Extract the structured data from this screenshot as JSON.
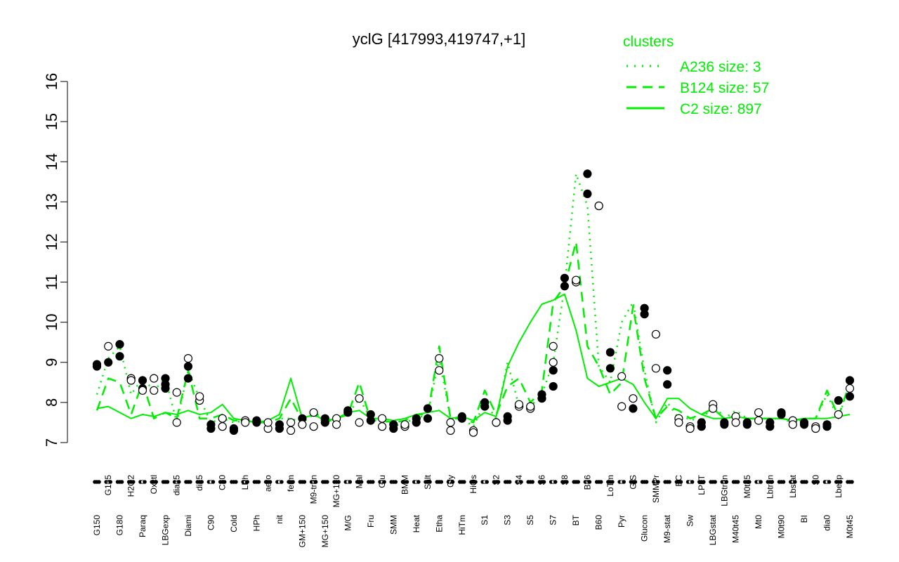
{
  "chart_data": {
    "type": "line",
    "title": "yclG [417993,419747,+1]",
    "xlabel": "",
    "ylabel": "",
    "ylim": [
      7,
      16
    ],
    "yticks": [
      7,
      8,
      9,
      10,
      11,
      12,
      13,
      14,
      15,
      16
    ],
    "grid": false,
    "legend": {
      "title": "clusters",
      "placement": "top-right",
      "color": "#00ee00",
      "entries": [
        {
          "label": "A236 size: 3",
          "style": "dotted"
        },
        {
          "label": "B124 size: 57",
          "style": "dashed"
        },
        {
          "label": "C2 size: 897",
          "style": "solid"
        }
      ]
    },
    "x_tick_labels": [
      "G150",
      "G135",
      "G180",
      "H2O2",
      "Paraq",
      "Oxctl",
      "LBGexp",
      "dia15",
      "Diami",
      "dia5",
      "C90",
      "C30",
      "Cold",
      "LPh",
      "HPh",
      "aero",
      "nit",
      "ferm",
      "GM+150",
      "M9-tran",
      "MG+150",
      "MG+120",
      "M/G",
      "Mal",
      "Fru",
      "Glu",
      "SMM",
      "BMM",
      "Heat",
      "Salt",
      "Etha",
      "Gly",
      "HiTm",
      "HiOs",
      "S1",
      "S2",
      "S3",
      "S4",
      "S5",
      "S6",
      "S7",
      "S8",
      "BT",
      "B36",
      "B60",
      "LoTm",
      "Pyr",
      "G/S",
      "Glucon",
      "SMMPr",
      "M9-stat",
      "BC",
      "Sw",
      "LPhT",
      "LBGstat",
      "LBGtran",
      "M40t45",
      "M0t45",
      "Mt0",
      "Lbtran",
      "M0t90",
      "Lbstat",
      "BI",
      "S0",
      "dia0",
      "Lbexp",
      "M0t45"
    ],
    "series": [
      {
        "name": "",
        "color": "#00ee00",
        "style": "solid",
        "y": [
          7.85,
          7.9,
          7.75,
          7.6,
          7.7,
          7.65,
          7.75,
          7.7,
          7.8,
          7.7,
          7.75,
          7.95,
          7.6,
          7.55,
          7.5,
          7.55,
          7.7,
          8.6,
          7.6,
          7.7,
          7.55,
          7.6,
          7.75,
          7.8,
          7.6,
          7.6,
          7.55,
          7.6,
          7.7,
          7.75,
          7.8,
          7.6,
          7.65,
          7.55,
          7.75,
          7.65,
          8.9,
          9.5,
          10.0,
          10.45,
          10.55,
          10.7,
          9.8,
          8.6,
          8.4,
          8.5,
          8.6,
          8.45,
          8.0,
          7.6,
          8.1,
          8.1,
          7.85,
          7.7,
          7.6,
          7.6,
          7.65,
          7.6,
          7.6,
          7.6,
          7.6,
          7.55,
          7.6,
          7.6,
          7.6,
          7.65,
          7.7
        ]
      },
      {
        "name": "",
        "color": "#00ee00",
        "style": "dashed",
        "y": [
          7.8,
          8.6,
          8.5,
          7.7,
          8.5,
          7.6,
          7.75,
          7.6,
          8.8,
          7.6,
          7.6,
          7.7,
          7.55,
          7.55,
          7.5,
          7.5,
          7.6,
          8.1,
          7.55,
          7.8,
          7.5,
          7.6,
          7.7,
          8.5,
          7.55,
          7.55,
          7.5,
          7.55,
          7.7,
          7.7,
          9.4,
          7.6,
          7.6,
          7.5,
          8.3,
          7.7,
          8.4,
          8.6,
          8.0,
          8.3,
          10.5,
          10.9,
          12.0,
          9.4,
          8.9,
          8.2,
          8.5,
          10.4,
          8.6,
          7.6,
          7.9,
          7.8,
          7.6,
          7.7,
          7.85,
          7.6,
          7.65,
          7.6,
          7.6,
          7.6,
          7.6,
          7.55,
          7.6,
          7.6,
          8.3,
          7.65,
          8.5
        ]
      },
      {
        "name": "",
        "color": "#00ee00",
        "style": "dotted",
        "y": [
          8.2,
          9.1,
          9.4,
          8.2,
          8.6,
          8.3,
          8.6,
          7.5,
          8.8,
          8.1,
          7.5,
          7.6,
          7.5,
          7.55,
          7.5,
          7.5,
          7.6,
          7.6,
          7.5,
          7.7,
          7.5,
          7.6,
          7.7,
          8.1,
          7.6,
          7.6,
          7.4,
          7.5,
          7.6,
          7.7,
          9.1,
          7.6,
          7.6,
          7.4,
          8.0,
          7.6,
          9.0,
          7.9,
          7.9,
          8.2,
          9.0,
          10.9,
          13.7,
          12.9,
          8.9,
          8.5,
          10.0,
          10.5,
          8.8,
          7.5,
          8.0,
          7.6,
          7.6,
          7.5,
          8.0,
          7.6,
          7.8,
          7.6,
          7.6,
          7.6,
          7.6,
          7.5,
          7.6,
          7.6,
          8.2,
          7.6,
          8.5
        ]
      }
    ],
    "points": [
      [
        0,
        8.9,
        1
      ],
      [
        0,
        8.95,
        1
      ],
      [
        1,
        9.0,
        1
      ],
      [
        1,
        9.4,
        0
      ],
      [
        2,
        9.45,
        1
      ],
      [
        2,
        9.15,
        1
      ],
      [
        3,
        8.6,
        0
      ],
      [
        3,
        8.55,
        0
      ],
      [
        4,
        8.55,
        1
      ],
      [
        4,
        8.35,
        1
      ],
      [
        4,
        8.3,
        0
      ],
      [
        5,
        8.6,
        0
      ],
      [
        5,
        8.3,
        0
      ],
      [
        6,
        8.6,
        1
      ],
      [
        6,
        8.35,
        1
      ],
      [
        6,
        8.45,
        1
      ],
      [
        7,
        7.5,
        0
      ],
      [
        7,
        8.25,
        0
      ],
      [
        8,
        9.1,
        0
      ],
      [
        8,
        8.9,
        1
      ],
      [
        8,
        8.6,
        1
      ],
      [
        9,
        8.05,
        0
      ],
      [
        9,
        8.15,
        0
      ],
      [
        10,
        7.45,
        1
      ],
      [
        10,
        7.35,
        1
      ],
      [
        11,
        7.6,
        0
      ],
      [
        11,
        7.4,
        0
      ],
      [
        12,
        7.3,
        1
      ],
      [
        12,
        7.35,
        1
      ],
      [
        13,
        7.55,
        0
      ],
      [
        13,
        7.5,
        0
      ],
      [
        14,
        7.55,
        1
      ],
      [
        14,
        7.5,
        1
      ],
      [
        15,
        7.35,
        0
      ],
      [
        15,
        7.5,
        0
      ],
      [
        16,
        7.35,
        1
      ],
      [
        16,
        7.45,
        1
      ],
      [
        17,
        7.5,
        0
      ],
      [
        17,
        7.3,
        0
      ],
      [
        18,
        7.6,
        1
      ],
      [
        18,
        7.45,
        0
      ],
      [
        19,
        7.75,
        0
      ],
      [
        19,
        7.4,
        0
      ],
      [
        20,
        7.6,
        1
      ],
      [
        20,
        7.5,
        1
      ],
      [
        21,
        7.6,
        0
      ],
      [
        21,
        7.45,
        0
      ],
      [
        22,
        7.8,
        1
      ],
      [
        22,
        7.75,
        1
      ],
      [
        23,
        8.1,
        0
      ],
      [
        23,
        7.5,
        0
      ],
      [
        24,
        7.7,
        1
      ],
      [
        24,
        7.55,
        1
      ],
      [
        25,
        7.6,
        0
      ],
      [
        25,
        7.4,
        0
      ],
      [
        26,
        7.35,
        1
      ],
      [
        26,
        7.45,
        1
      ],
      [
        27,
        7.4,
        0
      ],
      [
        27,
        7.45,
        0
      ],
      [
        28,
        7.6,
        1
      ],
      [
        28,
        7.5,
        1
      ],
      [
        29,
        7.85,
        1
      ],
      [
        29,
        7.6,
        1
      ],
      [
        30,
        8.8,
        0
      ],
      [
        30,
        9.1,
        0
      ],
      [
        31,
        7.5,
        0
      ],
      [
        31,
        7.3,
        0
      ],
      [
        32,
        7.6,
        1
      ],
      [
        32,
        7.65,
        1
      ],
      [
        33,
        7.3,
        0
      ],
      [
        33,
        7.25,
        0
      ],
      [
        34,
        7.9,
        1
      ],
      [
        34,
        8.0,
        1
      ],
      [
        35,
        7.5,
        0
      ],
      [
        35,
        7.5,
        0
      ],
      [
        36,
        7.55,
        1
      ],
      [
        36,
        7.65,
        1
      ],
      [
        37,
        7.9,
        0
      ],
      [
        37,
        7.95,
        0
      ],
      [
        38,
        7.85,
        0
      ],
      [
        38,
        7.9,
        0
      ],
      [
        39,
        8.1,
        1
      ],
      [
        39,
        8.2,
        1
      ],
      [
        40,
        8.4,
        1
      ],
      [
        40,
        8.8,
        1
      ],
      [
        40,
        9.4,
        0
      ],
      [
        40,
        9.0,
        0
      ],
      [
        41,
        10.9,
        1
      ],
      [
        41,
        11.1,
        1
      ],
      [
        42,
        11.0,
        0
      ],
      [
        42,
        11.05,
        0
      ],
      [
        43,
        13.2,
        1
      ],
      [
        43,
        13.7,
        1
      ],
      [
        44,
        12.9,
        0
      ],
      [
        44,
        12.9,
        0
      ],
      [
        45,
        9.25,
        1
      ],
      [
        45,
        8.85,
        1
      ],
      [
        46,
        8.65,
        0
      ],
      [
        46,
        7.9,
        0
      ],
      [
        47,
        8.1,
        0
      ],
      [
        47,
        7.85,
        1
      ],
      [
        48,
        10.35,
        1
      ],
      [
        48,
        10.2,
        1
      ],
      [
        49,
        9.7,
        0
      ],
      [
        49,
        8.85,
        0
      ],
      [
        50,
        8.8,
        1
      ],
      [
        50,
        8.45,
        1
      ],
      [
        51,
        7.6,
        0
      ],
      [
        51,
        7.5,
        0
      ],
      [
        52,
        7.4,
        0
      ],
      [
        52,
        7.35,
        0
      ],
      [
        53,
        7.5,
        1
      ],
      [
        53,
        7.4,
        1
      ],
      [
        54,
        7.95,
        0
      ],
      [
        54,
        7.85,
        0
      ],
      [
        55,
        7.45,
        1
      ],
      [
        55,
        7.5,
        1
      ],
      [
        56,
        7.65,
        0
      ],
      [
        56,
        7.5,
        0
      ],
      [
        57,
        7.45,
        1
      ],
      [
        57,
        7.5,
        1
      ],
      [
        58,
        7.75,
        0
      ],
      [
        58,
        7.55,
        0
      ],
      [
        59,
        7.4,
        1
      ],
      [
        59,
        7.5,
        1
      ],
      [
        60,
        7.75,
        1
      ],
      [
        60,
        7.7,
        1
      ],
      [
        61,
        7.55,
        0
      ],
      [
        61,
        7.45,
        0
      ],
      [
        62,
        7.5,
        1
      ],
      [
        62,
        7.45,
        1
      ],
      [
        63,
        7.4,
        0
      ],
      [
        63,
        7.35,
        0
      ],
      [
        64,
        7.4,
        1
      ],
      [
        64,
        7.45,
        1
      ],
      [
        65,
        7.7,
        0
      ],
      [
        65,
        8.05,
        1
      ],
      [
        66,
        8.15,
        1
      ],
      [
        66,
        8.35,
        0
      ],
      [
        66,
        8.55,
        1
      ]
    ]
  }
}
